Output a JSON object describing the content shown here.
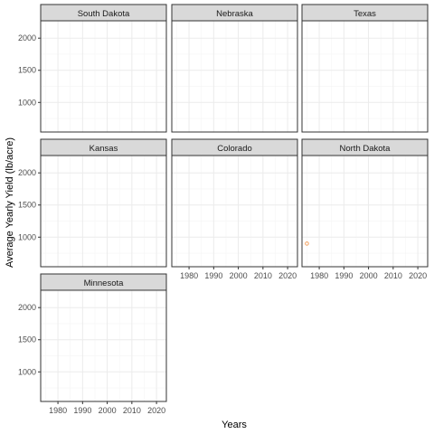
{
  "chart_data": {
    "type": "scatter",
    "layout": "facet_wrap",
    "ncol": 3,
    "xlabel": "Years",
    "ylabel": "Average Yearly Yield (lb/acre)",
    "xlim": [
      1973,
      2024
    ],
    "ylim": [
      540,
      2270
    ],
    "xticks": [
      1980,
      1990,
      2000,
      2010,
      2020
    ],
    "yticks": [
      1000,
      1500,
      2000
    ],
    "grid": true,
    "legend": "none",
    "colors": {
      "point": "#f4a261",
      "strip_bg": "#d9d9d9",
      "grid_major": "#ebebeb",
      "grid_minor": "#f5f5f5",
      "border": "#333333"
    },
    "panels": [
      {
        "title": "South Dakota",
        "points": []
      },
      {
        "title": "Nebraska",
        "points": []
      },
      {
        "title": "Texas",
        "points": []
      },
      {
        "title": "Kansas",
        "points": []
      },
      {
        "title": "Colorado",
        "points": []
      },
      {
        "title": "North Dakota",
        "points": [
          {
            "x": 1975,
            "y": 900
          }
        ]
      },
      {
        "title": "Minnesota",
        "points": []
      }
    ]
  }
}
